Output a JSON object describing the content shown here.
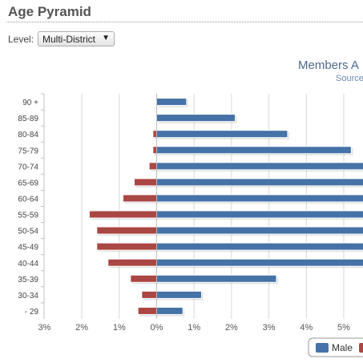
{
  "page": {
    "title": "Age Pyramid",
    "level_label": "Level:",
    "level_value": "Multi-District",
    "caret_icon": "chevron-down-icon"
  },
  "chart_data": {
    "type": "bar",
    "orientation": "horizontal",
    "title": "Members A",
    "subtitle": "Source",
    "categories": [
      "90 +",
      "85-89",
      "80-84",
      "75-79",
      "70-74",
      "65-69",
      "60-64",
      "55-59",
      "50-54",
      "45-49",
      "40-44",
      "35-39",
      "30-34",
      "- 29"
    ],
    "series": [
      {
        "name": "Male",
        "color": "#4572A7",
        "values": [
          0.8,
          2.1,
          3.5,
          5.2,
          5.6,
          5.6,
          5.6,
          5.6,
          5.6,
          5.6,
          5.6,
          3.2,
          1.2,
          0.7
        ]
      },
      {
        "color": "#AA4643",
        "values": [
          0.0,
          0.0,
          0.1,
          0.1,
          0.2,
          0.6,
          0.9,
          1.8,
          1.6,
          1.6,
          1.3,
          0.7,
          0.4,
          0.5
        ]
      }
    ],
    "x_ticks": [
      "3%",
      "2%",
      "1%",
      "0%",
      "1%",
      "2%",
      "3%",
      "4%",
      "5%"
    ],
    "xlim": [
      -3,
      5.6
    ],
    "grid": true,
    "legend_position": "bottom-right"
  }
}
